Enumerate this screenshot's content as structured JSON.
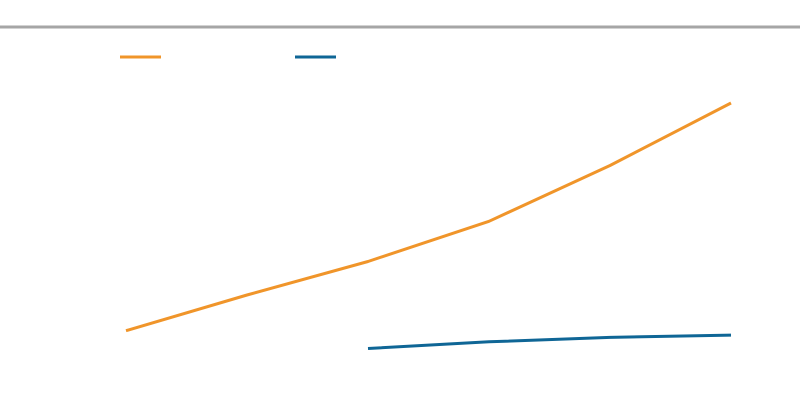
{
  "chart_data": {
    "type": "line",
    "title": "",
    "xlabel": "",
    "ylabel": "",
    "x": [
      0,
      1,
      2,
      3,
      4,
      5
    ],
    "xlim": [
      0,
      5
    ],
    "ylim": [
      0,
      10
    ],
    "grid": false,
    "legend": "top-left",
    "series": [
      {
        "color": "#F0952A",
        "values": [
          1.0,
          2.6,
          4.1,
          5.9,
          8.4,
          11.2
        ]
      },
      {
        "color": "#0F6696",
        "values": [
          null,
          null,
          0.2,
          0.5,
          0.7,
          0.8
        ]
      }
    ]
  },
  "colors": {
    "rule": "#a6a6a6"
  }
}
